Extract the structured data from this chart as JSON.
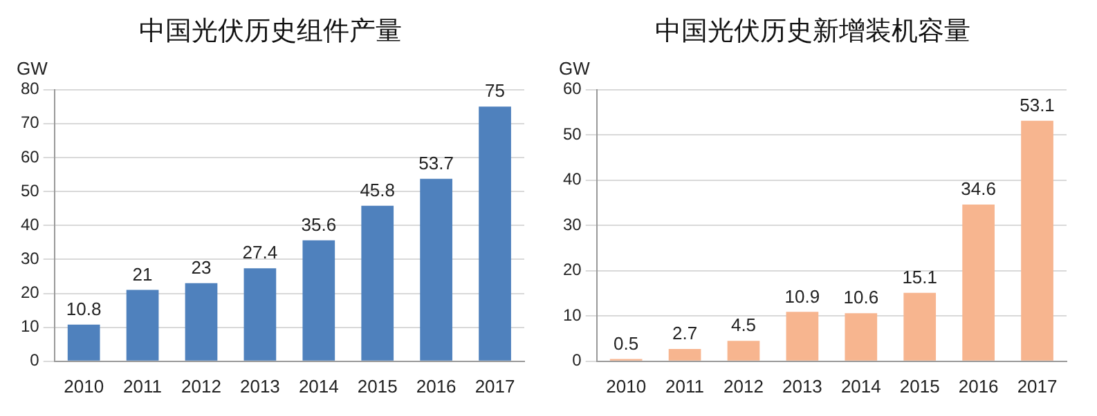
{
  "chart_data": [
    {
      "type": "bar",
      "title": "中国光伏历史组件产量",
      "ylabel": "GW",
      "categories": [
        "2010",
        "2011",
        "2012",
        "2013",
        "2014",
        "2015",
        "2016",
        "2017"
      ],
      "values": [
        10.8,
        21,
        23,
        27.4,
        35.6,
        45.8,
        53.7,
        75
      ],
      "color": "#4f81bd",
      "ylim": [
        0,
        80
      ],
      "yticks": [
        0,
        10,
        20,
        30,
        40,
        50,
        60,
        70,
        80
      ],
      "grid": "y",
      "data_labels": true
    },
    {
      "type": "bar",
      "title": "中国光伏历史新增装机容量",
      "ylabel": "GW",
      "categories": [
        "2010",
        "2011",
        "2012",
        "2013",
        "2014",
        "2015",
        "2016",
        "2017"
      ],
      "values": [
        0.5,
        2.7,
        4.5,
        10.9,
        10.6,
        15.1,
        34.6,
        53.1
      ],
      "color": "#f7b58f",
      "ylim": [
        0,
        60
      ],
      "yticks": [
        0,
        10,
        20,
        30,
        40,
        50,
        60
      ],
      "grid": "y",
      "data_labels": true
    }
  ]
}
